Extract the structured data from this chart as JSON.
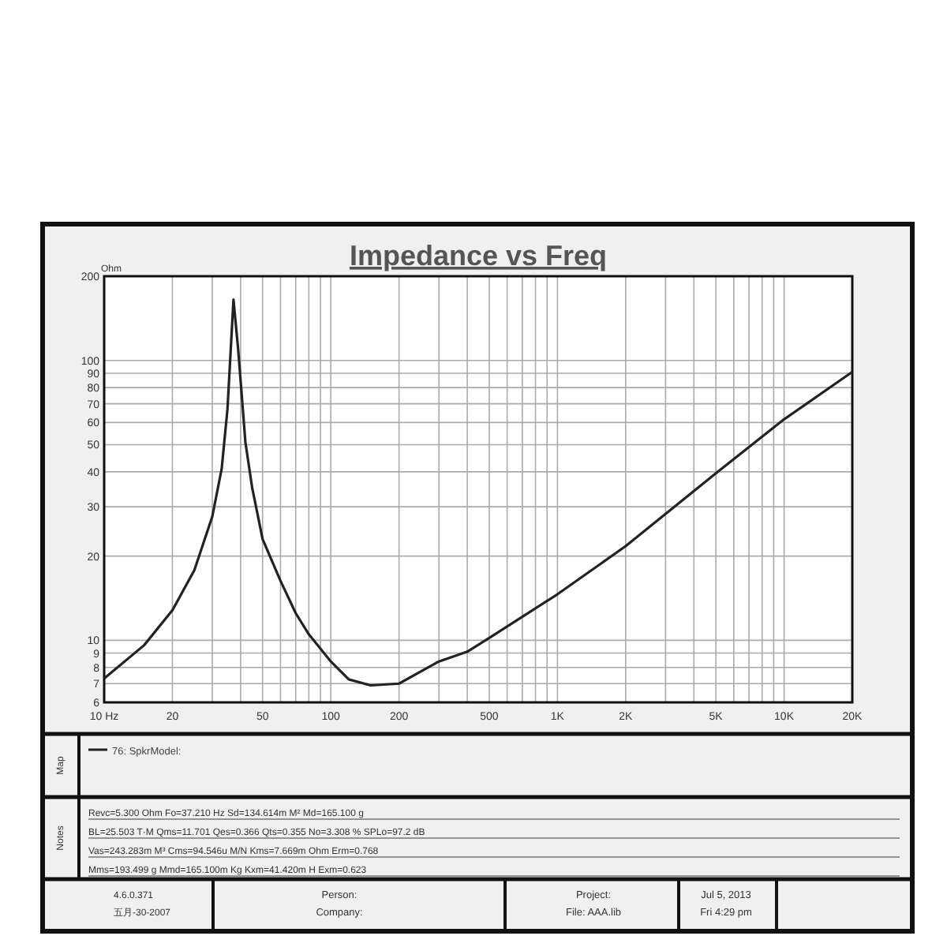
{
  "chart_data": {
    "type": "line",
    "title": "Impedance vs Freq",
    "ylabel": "Ohm",
    "log": "xy",
    "xlim": [
      10,
      20000
    ],
    "ylim": [
      6,
      200
    ],
    "xticks": [
      {
        "value": 10,
        "label": "10  Hz"
      },
      20,
      {
        "value": 30,
        "label": null
      },
      {
        "value": 40,
        "label": null
      },
      50,
      {
        "value": 60,
        "label": null
      },
      {
        "value": 70,
        "label": null
      },
      {
        "value": 80,
        "label": null
      },
      {
        "value": 90,
        "label": null
      },
      100,
      200,
      {
        "value": 300,
        "label": null
      },
      {
        "value": 400,
        "label": null
      },
      500,
      {
        "value": 600,
        "label": null
      },
      {
        "value": 700,
        "label": null
      },
      {
        "value": 800,
        "label": null
      },
      {
        "value": 900,
        "label": null
      },
      {
        "value": 1000,
        "label": "1K"
      },
      {
        "value": 2000,
        "label": "2K"
      },
      {
        "value": 3000,
        "label": null
      },
      {
        "value": 4000,
        "label": null
      },
      {
        "value": 5000,
        "label": "5K"
      },
      {
        "value": 6000,
        "label": null
      },
      {
        "value": 7000,
        "label": null
      },
      {
        "value": 8000,
        "label": null
      },
      {
        "value": 9000,
        "label": null
      },
      {
        "value": 10000,
        "label": "10K"
      },
      {
        "value": 20000,
        "label": "20K"
      }
    ],
    "yticks": [
      6,
      7,
      8,
      9,
      10,
      20,
      30,
      40,
      50,
      60,
      70,
      80,
      90,
      100,
      200
    ],
    "grid": true,
    "legend": "bottom",
    "series": [
      {
        "name": "76: SpkrModel:",
        "color": "#222222",
        "x": [
          10,
          15,
          20,
          25,
          30,
          33,
          35,
          37.2,
          39,
          42,
          45,
          50,
          60,
          70,
          80,
          100,
          120,
          150,
          200,
          300,
          400,
          500,
          1000,
          2000,
          5000,
          10000,
          20000
        ],
        "values": [
          7.3,
          9.6,
          12.8,
          17.8,
          27.7,
          41,
          67,
          165,
          110,
          51,
          35,
          23,
          16.3,
          12.5,
          10.5,
          8.4,
          7.25,
          6.9,
          7.0,
          8.4,
          9.1,
          10.2,
          14.6,
          21.7,
          39.5,
          61.6,
          91
        ]
      }
    ],
    "annotations": [
      "Map",
      "Notes",
      "Revc=5.300 Ohm  Fo=37.210 Hz  Sd=134.614m M²  Md=165.100 g",
      "BL=25.503 T·M  Qms=11.701  Qes=0.366  Qts=0.355  No=3.308 %  SPLo=97.2 dB",
      "Vas=243.283m M³  Cms=94.546u M/N  Kms=7.669m Ohm  Erm=0.768",
      "Mms=193.499 g  Mmd=165.100m Kg  Kxm=41.420m H  Exm=0.623",
      "4.6.0.371",
      "五月-30-2007",
      "Person:",
      "Company:",
      "Project:",
      "File: AAA.lib",
      "Jul 5, 2013",
      "Fri 4:29 pm"
    ]
  }
}
